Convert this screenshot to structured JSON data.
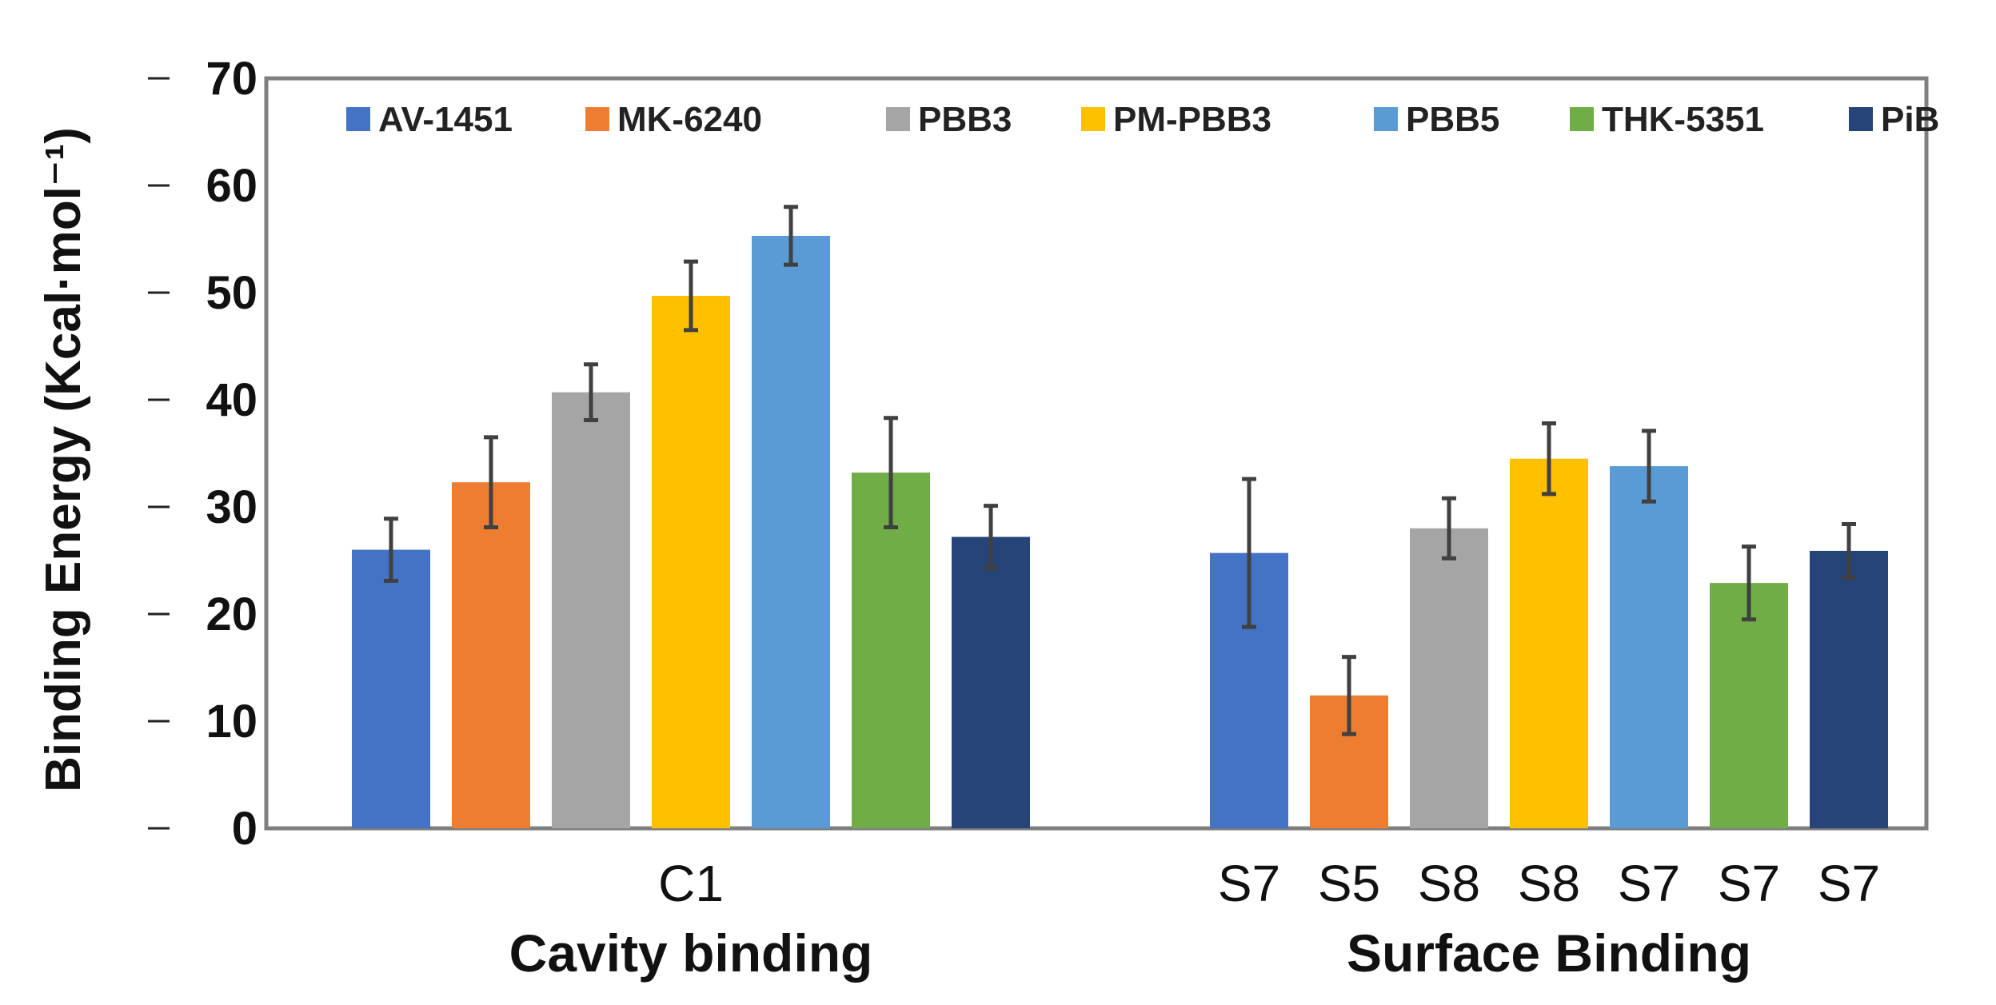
{
  "chart_data": {
    "type": "bar",
    "title": "",
    "xlabel": "",
    "ylabel": "Binding Energy (Kcal·mol⁻¹)",
    "ylim": [
      0,
      70
    ],
    "yticks": [
      "0",
      "10",
      "20",
      "30",
      "40",
      "50",
      "60",
      "70"
    ],
    "grid": false,
    "legend_position": "top",
    "series_names": [
      "AV-1451",
      "MK-6240",
      "PBB3",
      "PM-PBB3",
      "PBB5",
      "THK-5351",
      "PiB"
    ],
    "series_colors": [
      "#4472C4",
      "#ED7D31",
      "#A5A5A5",
      "#FFC000",
      "#5B9BD5",
      "#70AD47",
      "#264478"
    ],
    "groups": [
      {
        "name": "Cavity binding",
        "site_labels": [
          "C1"
        ],
        "values": [
          26,
          32.3,
          40.7,
          49.7,
          55.3,
          33.2,
          27.2
        ],
        "errors": [
          2.9,
          4.2,
          2.6,
          3.2,
          2.7,
          5.1,
          2.9
        ]
      },
      {
        "name": "Surface Binding",
        "site_labels": [
          "S7",
          "S5",
          "S8",
          "S8",
          "S7",
          "S7",
          "S7"
        ],
        "values": [
          25.7,
          12.4,
          28,
          34.5,
          33.8,
          22.9,
          25.9
        ],
        "errors": [
          6.9,
          3.6,
          2.8,
          3.3,
          3.3,
          3.4,
          2.5
        ]
      }
    ]
  }
}
